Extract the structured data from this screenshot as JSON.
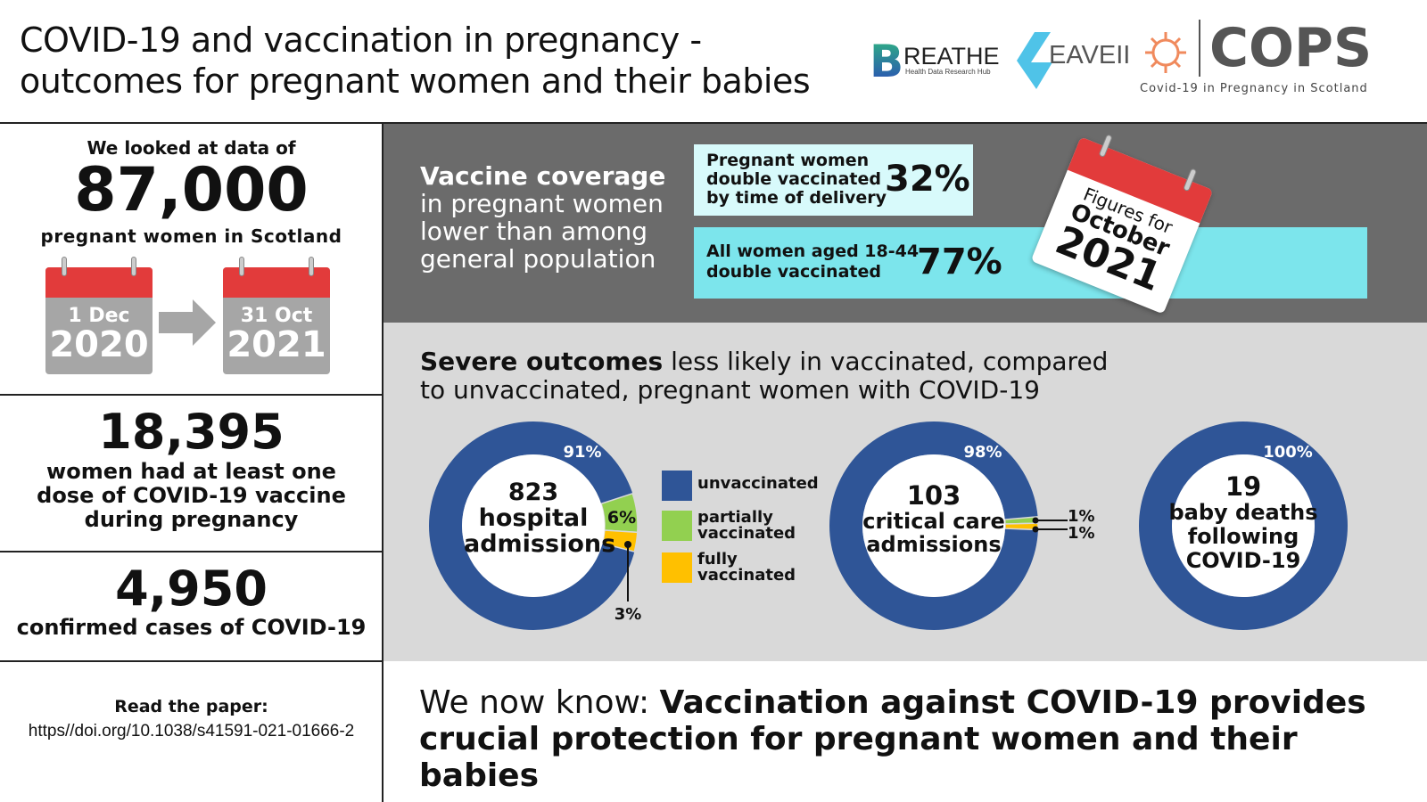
{
  "header": {
    "title_line1": "COVID-19 and vaccination in pregnancy -",
    "title_line2": "outcomes for pregnant women and their babies",
    "logos": {
      "breathe": "BREATHE",
      "breathe_sub": "Health Data Research Hub",
      "eave": "EAVEII",
      "cops": "COPS",
      "cops_sub": "Covid-19 in Pregnancy in Scotland"
    }
  },
  "left": {
    "intro": "We looked at data of",
    "total": "87,000",
    "total_label": "pregnant women in Scotland",
    "start": {
      "day": "1 Dec",
      "year": "2020"
    },
    "end": {
      "day": "31 Oct",
      "year": "2021"
    },
    "vaccinated": "18,395",
    "vaccinated_label": [
      "women had at least one",
      "dose of COVID-19 vaccine",
      "during pregnancy"
    ],
    "cases": "4,950",
    "cases_label": "confirmed cases of COVID-19",
    "paper_label": "Read the paper:",
    "paper_link": "https//doi.org/10.1038/s41591-021-01666-2"
  },
  "coverage": {
    "heading": "Vaccine coverage",
    "lines": [
      "in pregnant women",
      "lower than among",
      "general population"
    ],
    "pregnant_label": [
      "Pregnant women",
      "double vaccinated",
      "by time of delivery"
    ],
    "pregnant_value": "32%",
    "all_label": [
      "All women aged 18-44",
      "double vaccinated"
    ],
    "all_value": "77%",
    "calendar": {
      "line1": "Figures for",
      "line2": "October",
      "line3": "2021"
    }
  },
  "outcomes": {
    "heading_bold": "Severe outcomes",
    "heading_rest": " less likely in vaccinated, compared",
    "heading_line2": "to unvaccinated, pregnant women with COVID-19",
    "legend": [
      {
        "label1": "unvaccinated",
        "label2": "",
        "color": "#2f5597"
      },
      {
        "label1": "partially",
        "label2": "vaccinated",
        "color": "#92d050"
      },
      {
        "label1": "fully",
        "label2": "vaccinated",
        "color": "#ffc000"
      }
    ]
  },
  "chart_data": [
    {
      "type": "pie",
      "center": [
        "823",
        "hospital",
        "admissions"
      ],
      "categories": [
        "unvaccinated",
        "partially vaccinated",
        "fully vaccinated"
      ],
      "values": [
        91,
        6,
        3
      ],
      "labels": [
        "91%",
        "6%",
        "3%"
      ]
    },
    {
      "type": "pie",
      "center": [
        "103",
        "critical care",
        "admissions"
      ],
      "categories": [
        "unvaccinated",
        "partially vaccinated",
        "fully vaccinated"
      ],
      "values": [
        98,
        1,
        1
      ],
      "labels": [
        "98%",
        "1%",
        "1%"
      ]
    },
    {
      "type": "pie",
      "center": [
        "19",
        "baby deaths",
        "following",
        "COVID-19"
      ],
      "categories": [
        "unvaccinated"
      ],
      "values": [
        100
      ],
      "labels": [
        "100%"
      ]
    }
  ],
  "conclusion": {
    "prefix": "We now know: ",
    "bold1": "Vaccination against COVID-19 provides",
    "bold2": "crucial protection for pregnant women and their babies"
  }
}
